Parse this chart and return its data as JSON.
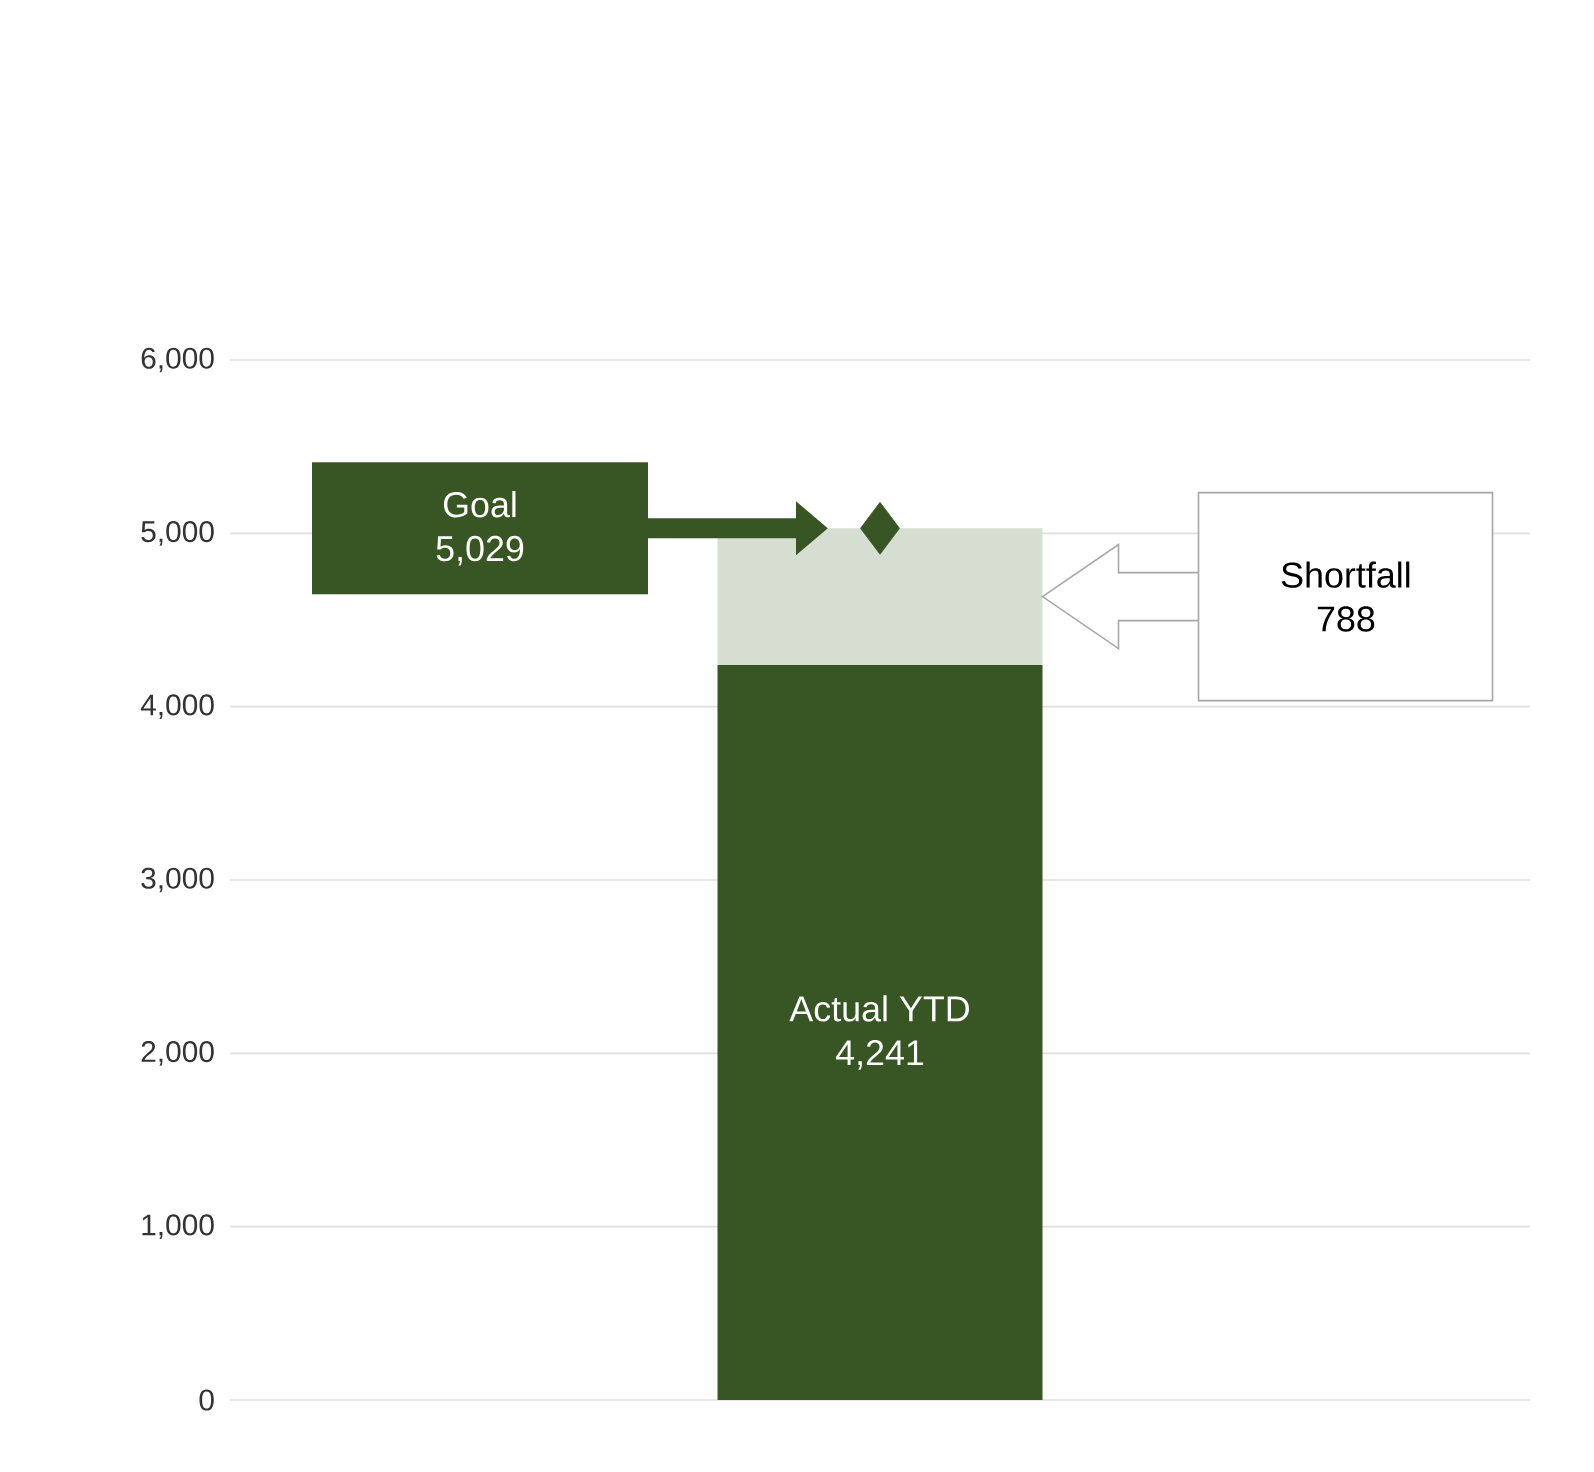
{
  "chart_data": {
    "type": "bar",
    "stacked": true,
    "categories": [
      null
    ],
    "series": [
      {
        "name": "Actual YTD",
        "color": "#375623",
        "values": [
          4241
        ],
        "value_labels": [
          "4,241"
        ]
      },
      {
        "color": "#d6ded2",
        "values": [
          788
        ]
      },
      {
        "type": "scatter",
        "marker": "diamond",
        "color": "#375623",
        "values": [
          5029
        ]
      }
    ],
    "annotations": [
      "Goal",
      "5,029",
      "Shortfall",
      "788"
    ],
    "ylim": [
      0,
      6000
    ],
    "yticks": [
      {
        "value": 0,
        "label": "0"
      },
      {
        "value": 1000,
        "label": "1,000"
      },
      {
        "value": 2000,
        "label": "2,000"
      },
      {
        "value": 3000,
        "label": "3,000"
      },
      {
        "value": 4000,
        "label": "4,000"
      },
      {
        "value": 5000,
        "label": "5,000"
      },
      {
        "value": 6000,
        "label": "6,000"
      }
    ],
    "grid": "y"
  }
}
